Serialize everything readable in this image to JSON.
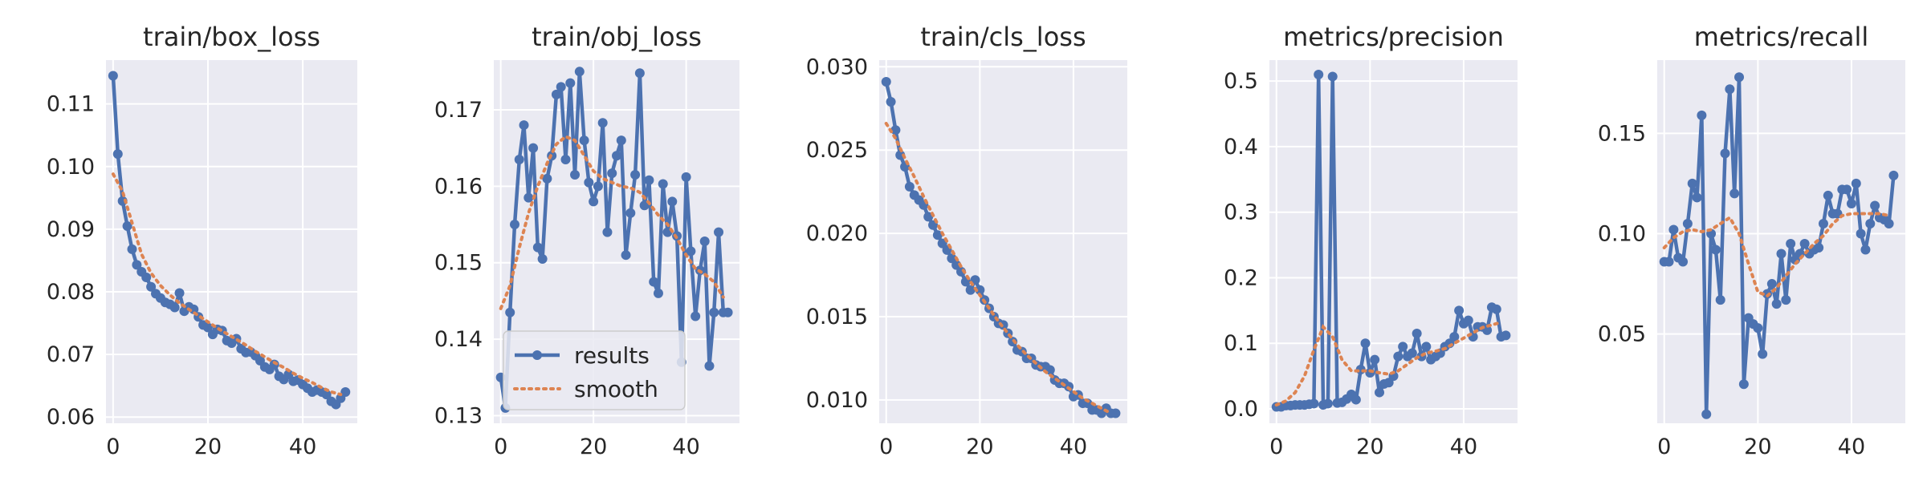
{
  "chart_data": [
    {
      "type": "line",
      "title": "train/box_loss",
      "xlim": [
        -1.5,
        51.5
      ],
      "ylim": [
        0.059,
        0.117
      ],
      "xticks": [
        0,
        20,
        40
      ],
      "yticks": [
        0.06,
        0.07,
        0.08,
        0.09,
        0.1,
        0.11
      ],
      "ytick_labels": [
        "0.06",
        "0.07",
        "0.08",
        "0.09",
        "0.10",
        "0.11"
      ],
      "grid": true,
      "series": [
        {
          "name": "results",
          "style": "line-with-markers",
          "color": "#4c72b0",
          "x": [
            0,
            1,
            2,
            3,
            4,
            5,
            6,
            7,
            8,
            9,
            10,
            11,
            12,
            13,
            14,
            15,
            16,
            17,
            18,
            19,
            20,
            21,
            22,
            23,
            24,
            25,
            26,
            27,
            28,
            29,
            30,
            31,
            32,
            33,
            34,
            35,
            36,
            37,
            38,
            39,
            40,
            41,
            42,
            43,
            44,
            45,
            46,
            47,
            48,
            49
          ],
          "y": [
            0.1145,
            0.102,
            0.0945,
            0.0905,
            0.0868,
            0.0843,
            0.0832,
            0.0823,
            0.0808,
            0.0797,
            0.079,
            0.0783,
            0.078,
            0.0775,
            0.0798,
            0.0769,
            0.0776,
            0.0772,
            0.076,
            0.0747,
            0.0743,
            0.0732,
            0.074,
            0.0738,
            0.0722,
            0.0718,
            0.0725,
            0.0709,
            0.0703,
            0.0704,
            0.0698,
            0.069,
            0.068,
            0.0676,
            0.0684,
            0.0665,
            0.066,
            0.0668,
            0.0657,
            0.0659,
            0.0652,
            0.0646,
            0.064,
            0.0643,
            0.064,
            0.0636,
            0.0625,
            0.062,
            0.063,
            0.064
          ]
        },
        {
          "name": "smooth",
          "style": "dotted",
          "color": "#dd8452",
          "x": [
            0,
            2,
            4,
            6,
            8,
            10,
            12,
            14,
            16,
            18,
            20,
            22,
            24,
            26,
            28,
            30,
            32,
            34,
            36,
            38,
            40,
            42,
            44,
            46,
            48
          ],
          "y": [
            0.0988,
            0.096,
            0.091,
            0.086,
            0.083,
            0.081,
            0.0795,
            0.0782,
            0.0772,
            0.0762,
            0.0752,
            0.0742,
            0.0733,
            0.0724,
            0.0715,
            0.0705,
            0.0696,
            0.0687,
            0.0679,
            0.067,
            0.0662,
            0.0655,
            0.0647,
            0.064,
            0.0636
          ]
        }
      ]
    },
    {
      "type": "line",
      "title": "train/obj_loss",
      "xlim": [
        -1.5,
        51.5
      ],
      "ylim": [
        0.129,
        0.1765
      ],
      "xticks": [
        0,
        20,
        40
      ],
      "yticks": [
        0.13,
        0.14,
        0.15,
        0.16,
        0.17
      ],
      "ytick_labels": [
        "0.13",
        "0.14",
        "0.15",
        "0.16",
        "0.17"
      ],
      "grid": true,
      "legend": {
        "placement": "lower-left",
        "entries": [
          "results",
          "smooth"
        ]
      },
      "series": [
        {
          "name": "results",
          "style": "line-with-markers",
          "color": "#4c72b0",
          "x": [
            0,
            1,
            2,
            3,
            4,
            5,
            6,
            7,
            8,
            9,
            10,
            11,
            12,
            13,
            14,
            15,
            16,
            17,
            18,
            19,
            20,
            21,
            22,
            23,
            24,
            25,
            26,
            27,
            28,
            29,
            30,
            31,
            32,
            33,
            34,
            35,
            36,
            37,
            38,
            39,
            40,
            41,
            42,
            43,
            44,
            45,
            46,
            47,
            48,
            49
          ],
          "y": [
            0.135,
            0.131,
            0.1435,
            0.155,
            0.1635,
            0.168,
            0.1585,
            0.165,
            0.152,
            0.1505,
            0.161,
            0.164,
            0.172,
            0.173,
            0.1635,
            0.1735,
            0.1615,
            0.175,
            0.166,
            0.1605,
            0.158,
            0.16,
            0.1683,
            0.154,
            0.1617,
            0.164,
            0.166,
            0.151,
            0.1565,
            0.1615,
            0.1748,
            0.1575,
            0.1608,
            0.1475,
            0.146,
            0.1603,
            0.154,
            0.158,
            0.1535,
            0.137,
            0.1612,
            0.1515,
            0.143,
            0.149,
            0.1528,
            0.1365,
            0.1435,
            0.154,
            0.1435,
            0.1435
          ]
        },
        {
          "name": "smooth",
          "style": "dotted",
          "color": "#dd8452",
          "x": [
            0,
            2,
            4,
            6,
            8,
            10,
            12,
            14,
            16,
            18,
            20,
            22,
            24,
            26,
            28,
            30,
            32,
            34,
            36,
            38,
            40,
            42,
            44,
            46,
            48
          ],
          "y": [
            0.144,
            0.147,
            0.152,
            0.1565,
            0.16,
            0.163,
            0.1655,
            0.1665,
            0.166,
            0.164,
            0.162,
            0.161,
            0.1605,
            0.16,
            0.1598,
            0.1592,
            0.1578,
            0.1562,
            0.155,
            0.1532,
            0.151,
            0.1492,
            0.1485,
            0.1475,
            0.1455
          ]
        }
      ]
    },
    {
      "type": "line",
      "title": "train/cls_loss",
      "xlim": [
        -1.5,
        51.5
      ],
      "ylim": [
        0.0086,
        0.0304
      ],
      "xticks": [
        0,
        20,
        40
      ],
      "yticks": [
        0.01,
        0.015,
        0.02,
        0.025,
        0.03
      ],
      "ytick_labels": [
        "0.010",
        "0.015",
        "0.020",
        "0.025",
        "0.030"
      ],
      "grid": true,
      "series": [
        {
          "name": "results",
          "style": "line-with-markers",
          "color": "#4c72b0",
          "x": [
            0,
            1,
            2,
            3,
            4,
            5,
            6,
            7,
            8,
            9,
            10,
            11,
            12,
            13,
            14,
            15,
            16,
            17,
            18,
            19,
            20,
            21,
            22,
            23,
            24,
            25,
            26,
            27,
            28,
            29,
            30,
            31,
            32,
            33,
            34,
            35,
            36,
            37,
            38,
            39,
            40,
            41,
            42,
            43,
            44,
            45,
            46,
            47,
            48,
            49
          ],
          "y": [
            0.0291,
            0.0279,
            0.0262,
            0.0247,
            0.024,
            0.0228,
            0.0223,
            0.022,
            0.0217,
            0.021,
            0.0205,
            0.0199,
            0.0194,
            0.019,
            0.0185,
            0.0181,
            0.0177,
            0.0171,
            0.0166,
            0.0172,
            0.0166,
            0.016,
            0.0155,
            0.015,
            0.0146,
            0.0145,
            0.014,
            0.0135,
            0.013,
            0.0129,
            0.0125,
            0.0125,
            0.0121,
            0.012,
            0.012,
            0.0118,
            0.0112,
            0.011,
            0.011,
            0.0108,
            0.0102,
            0.0103,
            0.0098,
            0.0098,
            0.0094,
            0.0094,
            0.0092,
            0.0095,
            0.0092,
            0.0092
          ]
        },
        {
          "name": "smooth",
          "style": "dotted",
          "color": "#dd8452",
          "x": [
            0,
            2,
            4,
            6,
            8,
            10,
            12,
            14,
            16,
            18,
            20,
            22,
            24,
            26,
            28,
            30,
            32,
            34,
            36,
            38,
            40,
            42,
            44,
            46,
            48
          ],
          "y": [
            0.0266,
            0.0257,
            0.0245,
            0.0234,
            0.0222,
            0.0211,
            0.02,
            0.019,
            0.018,
            0.0171,
            0.0163,
            0.0155,
            0.0147,
            0.014,
            0.0133,
            0.0127,
            0.0122,
            0.0117,
            0.0113,
            0.0109,
            0.0105,
            0.0101,
            0.0098,
            0.0095,
            0.0092
          ]
        }
      ]
    },
    {
      "type": "line",
      "title": "metrics/precision",
      "xlim": [
        -1.5,
        51.5
      ],
      "ylim": [
        -0.022,
        0.532
      ],
      "xticks": [
        0,
        20,
        40
      ],
      "yticks": [
        0.0,
        0.1,
        0.2,
        0.3,
        0.4,
        0.5
      ],
      "ytick_labels": [
        "0.0",
        "0.1",
        "0.2",
        "0.3",
        "0.4",
        "0.5"
      ],
      "grid": true,
      "series": [
        {
          "name": "results",
          "style": "line-with-markers",
          "color": "#4c72b0",
          "x": [
            0,
            1,
            2,
            3,
            4,
            5,
            6,
            7,
            8,
            9,
            10,
            11,
            12,
            13,
            14,
            15,
            16,
            17,
            18,
            19,
            20,
            21,
            22,
            23,
            24,
            25,
            26,
            27,
            28,
            29,
            30,
            31,
            32,
            33,
            34,
            35,
            36,
            37,
            38,
            39,
            40,
            41,
            42,
            43,
            44,
            45,
            46,
            47,
            48,
            49
          ],
          "y": [
            0.003,
            0.003,
            0.005,
            0.005,
            0.006,
            0.006,
            0.006,
            0.007,
            0.008,
            0.51,
            0.006,
            0.008,
            0.507,
            0.009,
            0.01,
            0.015,
            0.022,
            0.014,
            0.06,
            0.1,
            0.055,
            0.075,
            0.025,
            0.038,
            0.04,
            0.05,
            0.08,
            0.095,
            0.08,
            0.085,
            0.115,
            0.08,
            0.095,
            0.075,
            0.08,
            0.085,
            0.095,
            0.1,
            0.11,
            0.15,
            0.13,
            0.135,
            0.11,
            0.125,
            0.125,
            0.12,
            0.155,
            0.152,
            0.11,
            0.112
          ]
        },
        {
          "name": "smooth",
          "style": "dotted",
          "color": "#dd8452",
          "x": [
            0,
            2,
            4,
            6,
            8,
            10,
            12,
            14,
            16,
            18,
            20,
            22,
            24,
            26,
            28,
            30,
            32,
            34,
            36,
            38,
            40,
            42,
            44,
            46,
            48
          ],
          "y": [
            0.006,
            0.012,
            0.025,
            0.05,
            0.09,
            0.125,
            0.11,
            0.075,
            0.058,
            0.058,
            0.058,
            0.055,
            0.053,
            0.058,
            0.068,
            0.078,
            0.085,
            0.088,
            0.092,
            0.1,
            0.108,
            0.116,
            0.124,
            0.128,
            0.132
          ]
        }
      ]
    },
    {
      "type": "line",
      "title": "metrics/recall",
      "xlim": [
        -1.5,
        51.5
      ],
      "ylim": [
        0.0055,
        0.1865
      ],
      "xticks": [
        0,
        20,
        40
      ],
      "yticks": [
        0.05,
        0.1,
        0.15
      ],
      "ytick_labels": [
        "0.05",
        "0.10",
        "0.15"
      ],
      "grid": true,
      "series": [
        {
          "name": "results",
          "style": "line-with-markers",
          "color": "#4c72b0",
          "x": [
            0,
            1,
            2,
            3,
            4,
            5,
            6,
            7,
            8,
            9,
            10,
            11,
            12,
            13,
            14,
            15,
            16,
            17,
            18,
            19,
            20,
            21,
            22,
            23,
            24,
            25,
            26,
            27,
            28,
            29,
            30,
            31,
            32,
            33,
            34,
            35,
            36,
            37,
            38,
            39,
            40,
            41,
            42,
            43,
            44,
            45,
            46,
            47,
            48,
            49
          ],
          "y": [
            0.086,
            0.086,
            0.102,
            0.088,
            0.086,
            0.105,
            0.125,
            0.118,
            0.159,
            0.01,
            0.1,
            0.092,
            0.067,
            0.14,
            0.172,
            0.12,
            0.178,
            0.025,
            0.058,
            0.055,
            0.053,
            0.04,
            0.07,
            0.075,
            0.065,
            0.09,
            0.067,
            0.095,
            0.087,
            0.09,
            0.095,
            0.09,
            0.092,
            0.093,
            0.105,
            0.119,
            0.11,
            0.11,
            0.122,
            0.122,
            0.115,
            0.125,
            0.1,
            0.092,
            0.105,
            0.114,
            0.108,
            0.107,
            0.105,
            0.129
          ]
        },
        {
          "name": "smooth",
          "style": "dotted",
          "color": "#dd8452",
          "x": [
            0,
            2,
            4,
            6,
            8,
            10,
            12,
            14,
            16,
            18,
            20,
            22,
            24,
            26,
            28,
            30,
            32,
            34,
            36,
            38,
            40,
            42,
            44,
            46,
            48
          ],
          "y": [
            0.093,
            0.098,
            0.101,
            0.102,
            0.101,
            0.102,
            0.105,
            0.108,
            0.1,
            0.085,
            0.071,
            0.069,
            0.073,
            0.079,
            0.085,
            0.09,
            0.095,
            0.099,
            0.105,
            0.109,
            0.11,
            0.11,
            0.11,
            0.11,
            0.109
          ]
        }
      ]
    }
  ]
}
